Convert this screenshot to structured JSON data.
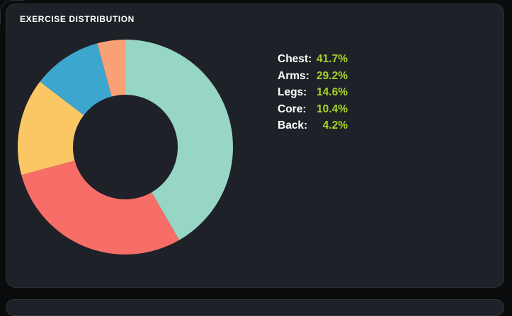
{
  "card": {
    "title": "EXERCISE DISTRIBUTION",
    "background": "#1e2127",
    "border_color": "#2f3339"
  },
  "chart_data": {
    "type": "pie",
    "style": "donut",
    "title": "Exercise Distribution",
    "categories": [
      "Chest",
      "Arms",
      "Legs",
      "Core",
      "Back"
    ],
    "values": [
      41.7,
      29.2,
      14.6,
      10.4,
      4.2
    ],
    "unit": "%",
    "colors": [
      "#97d5c5",
      "#f76d68",
      "#fbc765",
      "#3da6cf",
      "#f9a074"
    ],
    "cutout_ratio": 0.49,
    "start_angle_deg": 0,
    "direction": "clockwise",
    "legend_position": "right",
    "legend": [
      {
        "label": "Chest:",
        "value": "41.7%"
      },
      {
        "label": "Arms:",
        "value": "29.2%"
      },
      {
        "label": "Legs:",
        "value": "14.6%"
      },
      {
        "label": "Core:",
        "value": "10.4%"
      },
      {
        "label": "Back:",
        "value": "4.2%"
      }
    ],
    "label_color": "#ffffff",
    "value_color": "#a3d42a"
  }
}
